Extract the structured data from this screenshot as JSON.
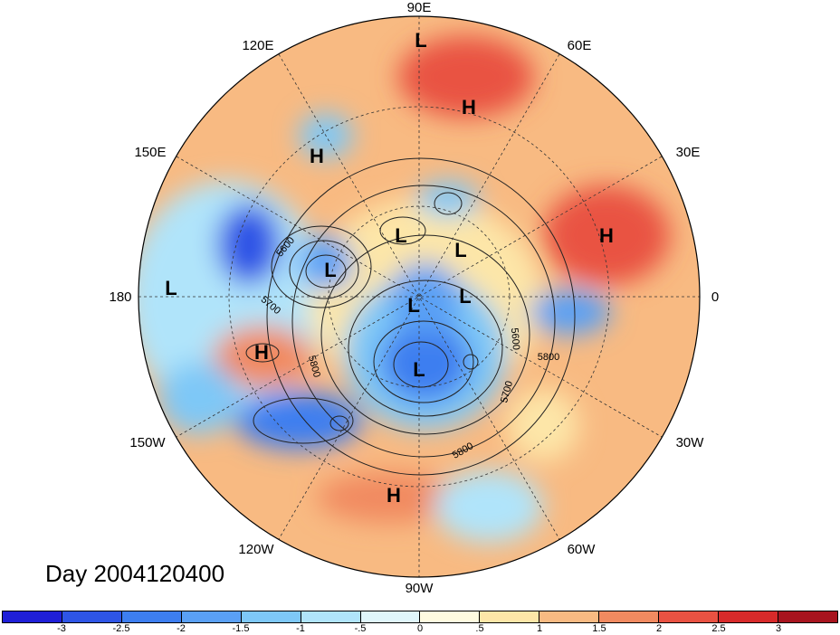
{
  "title": "Day 2004120400",
  "lon_labels": [
    "90E",
    "60E",
    "30E",
    "0",
    "30W",
    "60W",
    "90W",
    "120W",
    "150W",
    "180",
    "150E",
    "120E"
  ],
  "pressure_centers": [
    "L",
    "H",
    "H",
    "H",
    "L",
    "L",
    "L",
    "L",
    "L",
    "L",
    "H",
    "L",
    "H"
  ],
  "contour_labels": [
    "5600",
    "5700",
    "5800",
    "5600",
    "5800",
    "5700",
    "5800"
  ],
  "colorbar": {
    "ticks": [
      "-3",
      "-2.5",
      "-2",
      "-1.5",
      "-1",
      "-.5",
      "0",
      ".5",
      "1",
      "1.5",
      "2",
      "2.5",
      "3"
    ],
    "colors": [
      "#1f1fd8",
      "#2e55e6",
      "#3d7ef0",
      "#5aa0f5",
      "#7ec8f7",
      "#b0e4fa",
      "#e0f6fb",
      "#fffbe0",
      "#fde6a8",
      "#f8ba82",
      "#f18a60",
      "#e95242",
      "#d82a2a",
      "#a8141e"
    ]
  }
}
